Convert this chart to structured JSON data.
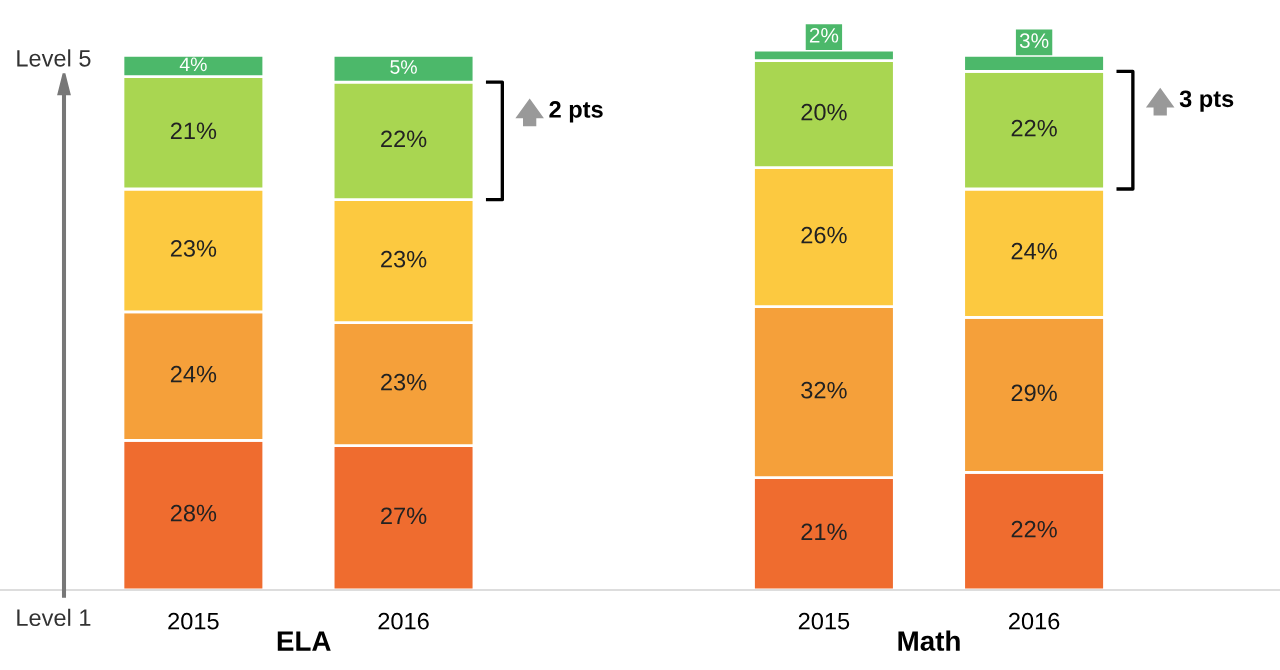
{
  "chart_data": {
    "type": "bar",
    "stacked": true,
    "categories": [
      "2015",
      "2016",
      null,
      "2015",
      "2016"
    ],
    "series": [
      {
        "color": "#ef6c2f",
        "values": [
          28,
          27,
          null,
          21,
          22
        ],
        "value_labels": [
          "28%",
          "27%",
          null,
          "21%",
          "22%"
        ]
      },
      {
        "color": "#f5a03a",
        "values": [
          24,
          23,
          null,
          32,
          29
        ],
        "value_labels": [
          "24%",
          "23%",
          null,
          "32%",
          "29%"
        ]
      },
      {
        "color": "#fcc940",
        "values": [
          23,
          23,
          null,
          26,
          24
        ],
        "value_labels": [
          "23%",
          "23%",
          null,
          "26%",
          "24%"
        ]
      },
      {
        "color": "#a9d651",
        "values": [
          21,
          22,
          null,
          20,
          22
        ],
        "value_labels": [
          "21%",
          "22%",
          null,
          "20%",
          "22%"
        ]
      },
      {
        "color": "#4cb86a",
        "values": [
          4,
          5,
          null,
          2,
          3
        ],
        "value_labels": [
          "4%",
          "5%",
          null,
          "2%",
          "3%"
        ]
      }
    ],
    "ylim": [
      0,
      101
    ],
    "tick_labels": "x",
    "grid": false,
    "legend": false,
    "annotations": [
      "Level 5",
      "Level 1",
      "ELA",
      "Math",
      "2 pts",
      "3 pts"
    ]
  }
}
